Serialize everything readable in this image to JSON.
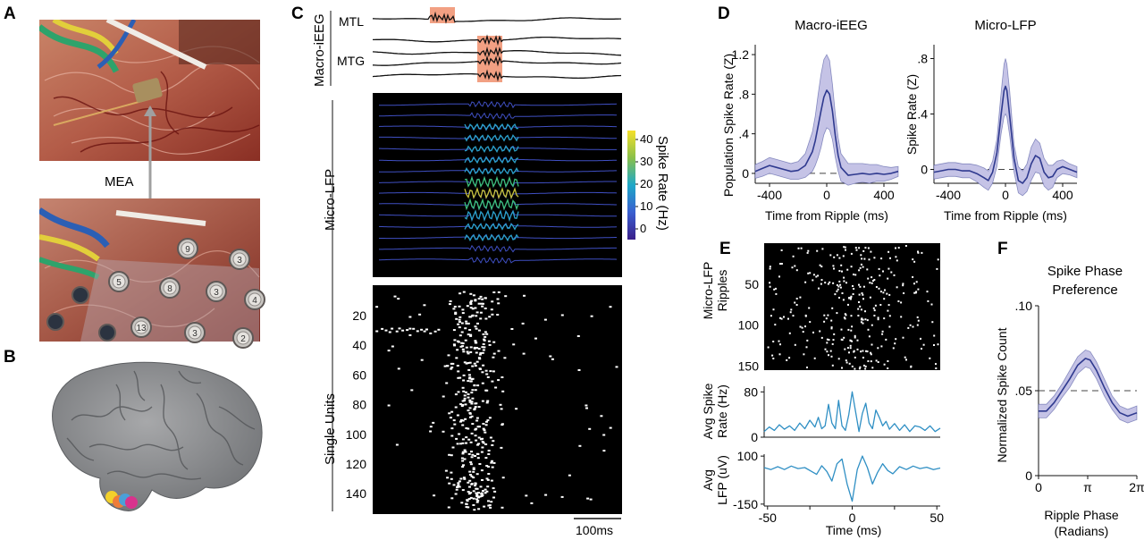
{
  "panels": {
    "a": {
      "letter": "A",
      "label": "MEA",
      "electrode_numbers": [
        "9",
        "3",
        "5",
        "8",
        "3",
        "4",
        "13",
        "3",
        "2"
      ]
    },
    "b": {
      "letter": "B",
      "markers": [
        {
          "name": "yellow-marker",
          "color": "#f2d02b"
        },
        {
          "name": "orange-marker",
          "color": "#ee7d3a"
        },
        {
          "name": "blue-marker",
          "color": "#4ba0d8"
        },
        {
          "name": "magenta-marker",
          "color": "#d8338d"
        }
      ]
    },
    "c": {
      "letter": "C",
      "macro_label": "Macro-iEEG",
      "mtl_label": "MTL",
      "mtg_label": "MTG",
      "micro_label": "Micro-LFP",
      "units_label": "Single Units",
      "colorbar_label": "Spike Rate (Hz)",
      "colorbar_ticks": [
        "40",
        "30",
        "20",
        "10",
        "0"
      ],
      "unit_ticks": [
        "20",
        "40",
        "60",
        "80",
        "100",
        "120",
        "140"
      ],
      "scale_label": "100ms"
    },
    "d": {
      "letter": "D"
    },
    "e": {
      "letter": "E"
    },
    "f": {
      "letter": "F"
    }
  },
  "chart_data": [
    {
      "id": "d-macro",
      "type": "line",
      "title": "Macro-iEEG",
      "xlabel": "Time from Ripple (ms)",
      "ylabel": "Population Spike Rate (Z)",
      "xlim": [
        -500,
        500
      ],
      "ylim": [
        -0.1,
        1.3
      ],
      "xticks": [
        -400,
        0,
        400
      ],
      "xtick_labels": [
        "-400",
        "0",
        "400"
      ],
      "yticks": [
        0,
        0.4,
        0.8,
        1.2
      ],
      "ytick_labels": [
        "0",
        ".4",
        ".8",
        "1.2"
      ],
      "reference_line": 0,
      "x": [
        -500,
        -450,
        -400,
        -350,
        -300,
        -250,
        -200,
        -150,
        -100,
        -80,
        -60,
        -40,
        -20,
        0,
        20,
        40,
        60,
        80,
        100,
        150,
        200,
        250,
        300,
        350,
        400,
        450,
        500
      ],
      "series": [
        {
          "name": "mean",
          "values": [
            0.02,
            0.05,
            0.08,
            0.06,
            0.04,
            0.02,
            0.03,
            0.08,
            0.22,
            0.33,
            0.48,
            0.63,
            0.77,
            0.84,
            0.8,
            0.63,
            0.38,
            0.18,
            0.06,
            -0.02,
            -0.01,
            0.0,
            -0.01,
            0.0,
            -0.01,
            0.0,
            0.02
          ]
        },
        {
          "name": "upper",
          "values": [
            0.09,
            0.12,
            0.16,
            0.14,
            0.12,
            0.1,
            0.12,
            0.2,
            0.42,
            0.58,
            0.8,
            1.0,
            1.15,
            1.2,
            1.14,
            0.9,
            0.6,
            0.36,
            0.2,
            0.1,
            0.1,
            0.1,
            0.09,
            0.09,
            0.07,
            0.06,
            0.07
          ]
        },
        {
          "name": "lower",
          "values": [
            -0.05,
            -0.03,
            0.0,
            -0.02,
            -0.04,
            -0.06,
            -0.06,
            -0.04,
            0.02,
            0.08,
            0.16,
            0.26,
            0.39,
            0.46,
            0.44,
            0.34,
            0.16,
            0.02,
            -0.08,
            -0.12,
            -0.1,
            -0.09,
            -0.1,
            -0.08,
            -0.08,
            -0.06,
            -0.03
          ]
        }
      ]
    },
    {
      "id": "d-micro",
      "type": "line",
      "title": "Micro-LFP",
      "xlabel": "Time from Ripple (ms)",
      "ylabel": "Spike Rate (Z)",
      "xlim": [
        -500,
        500
      ],
      "ylim": [
        -0.1,
        0.9
      ],
      "xticks": [
        -400,
        0,
        400
      ],
      "xtick_labels": [
        "-400",
        "0",
        "400"
      ],
      "yticks": [
        0,
        0.4,
        0.8
      ],
      "ytick_labels": [
        "0",
        ".4",
        ".8"
      ],
      "reference_line": 0,
      "x": [
        -500,
        -450,
        -400,
        -350,
        -300,
        -250,
        -200,
        -150,
        -120,
        -90,
        -60,
        -30,
        -10,
        0,
        10,
        30,
        60,
        90,
        120,
        150,
        180,
        210,
        240,
        270,
        300,
        330,
        360,
        400,
        450,
        500
      ],
      "series": [
        {
          "name": "mean",
          "values": [
            -0.02,
            -0.01,
            0.0,
            0.0,
            -0.01,
            -0.01,
            -0.03,
            -0.06,
            -0.08,
            -0.02,
            0.12,
            0.4,
            0.57,
            0.6,
            0.57,
            0.38,
            0.08,
            -0.08,
            -0.1,
            -0.06,
            0.04,
            0.1,
            0.08,
            -0.02,
            -0.06,
            -0.05,
            0.0,
            0.02,
            0.0,
            -0.02
          ]
        },
        {
          "name": "upper",
          "values": [
            0.03,
            0.04,
            0.05,
            0.05,
            0.04,
            0.04,
            0.03,
            0.01,
            -0.01,
            0.06,
            0.22,
            0.56,
            0.76,
            0.8,
            0.76,
            0.56,
            0.18,
            0.02,
            -0.01,
            0.04,
            0.16,
            0.22,
            0.19,
            0.08,
            0.03,
            0.03,
            0.06,
            0.07,
            0.04,
            0.02
          ]
        },
        {
          "name": "lower",
          "values": [
            -0.07,
            -0.06,
            -0.05,
            -0.05,
            -0.06,
            -0.06,
            -0.09,
            -0.13,
            -0.15,
            -0.1,
            0.02,
            0.26,
            0.38,
            0.4,
            0.38,
            0.24,
            -0.02,
            -0.17,
            -0.19,
            -0.16,
            -0.08,
            -0.02,
            -0.03,
            -0.12,
            -0.15,
            -0.13,
            -0.06,
            -0.03,
            -0.04,
            -0.06
          ]
        }
      ]
    },
    {
      "id": "e-rate",
      "type": "line",
      "ylabel": "Avg Spike Rate (Hz)",
      "xlim": [
        -52,
        52
      ],
      "ylim": [
        0,
        90
      ],
      "yticks": [
        0,
        80
      ],
      "ytick_labels": [
        "0",
        "80"
      ],
      "x": [
        -52,
        -49,
        -46,
        -43,
        -40,
        -37,
        -34,
        -31,
        -28,
        -25,
        -22,
        -20,
        -18,
        -16,
        -14,
        -12,
        -10,
        -8,
        -6,
        -4,
        -2,
        0,
        2,
        4,
        6,
        8,
        10,
        12,
        14,
        16,
        18,
        20,
        22,
        25,
        28,
        31,
        34,
        37,
        40,
        43,
        46,
        49,
        52
      ],
      "series": [
        {
          "name": "avg",
          "values": [
            10,
            18,
            12,
            22,
            14,
            20,
            12,
            25,
            15,
            30,
            18,
            35,
            15,
            20,
            58,
            25,
            15,
            65,
            20,
            12,
            40,
            80,
            45,
            10,
            42,
            60,
            25,
            15,
            48,
            35,
            20,
            28,
            14,
            24,
            12,
            22,
            10,
            20,
            18,
            12,
            20,
            10,
            16
          ]
        }
      ]
    },
    {
      "id": "e-lfp",
      "type": "line",
      "ylabel": "Avg LFP (uV)",
      "xlabel": "Time (ms)",
      "xlim": [
        -52,
        52
      ],
      "ylim": [
        -160,
        110
      ],
      "xticks": [
        -50,
        -25,
        0,
        25,
        50
      ],
      "xtick_labels": [
        "-50",
        "",
        "0",
        "",
        "50"
      ],
      "yticks": [
        -150,
        100
      ],
      "ytick_labels": [
        "-150",
        "100"
      ],
      "x": [
        -52,
        -48,
        -44,
        -40,
        -36,
        -32,
        -28,
        -24,
        -21,
        -18,
        -15,
        -12,
        -9,
        -6,
        -3,
        0,
        3,
        6,
        9,
        12,
        15,
        18,
        21,
        24,
        28,
        32,
        36,
        40,
        44,
        48,
        52
      ],
      "series": [
        {
          "name": "avg",
          "values": [
            40,
            30,
            45,
            30,
            48,
            35,
            40,
            20,
            5,
            50,
            20,
            -30,
            60,
            85,
            -45,
            -135,
            30,
            100,
            40,
            -45,
            15,
            60,
            25,
            8,
            45,
            30,
            48,
            35,
            42,
            30,
            38
          ]
        }
      ]
    },
    {
      "id": "f-phase",
      "type": "line",
      "title": "Spike Phase Preference",
      "title_lines": [
        "Spike Phase",
        "Preference"
      ],
      "xlabel": "Ripple Phase",
      "xlabel2": "(Radians)",
      "ylabel": "Normalized Spike Count",
      "xlim": [
        0,
        6.283
      ],
      "ylim": [
        0,
        0.1
      ],
      "xticks": [
        0,
        3.1416,
        6.283
      ],
      "xtick_labels": [
        "0",
        "π",
        "2π"
      ],
      "yticks": [
        0,
        0.05,
        0.1
      ],
      "ytick_labels": [
        "0",
        ".05",
        ".10"
      ],
      "reference_line": 0.05,
      "x": [
        0,
        0.5,
        1.0,
        1.5,
        2.0,
        2.5,
        3.0,
        3.3,
        3.7,
        4.2,
        4.7,
        5.2,
        5.7,
        6.283
      ],
      "series": [
        {
          "name": "mean",
          "values": [
            0.038,
            0.038,
            0.043,
            0.05,
            0.057,
            0.065,
            0.069,
            0.068,
            0.062,
            0.052,
            0.043,
            0.037,
            0.035,
            0.037
          ]
        },
        {
          "name": "upper",
          "values": [
            0.042,
            0.042,
            0.047,
            0.054,
            0.062,
            0.07,
            0.074,
            0.073,
            0.067,
            0.057,
            0.047,
            0.041,
            0.039,
            0.041
          ]
        },
        {
          "name": "lower",
          "values": [
            0.034,
            0.034,
            0.039,
            0.046,
            0.052,
            0.06,
            0.064,
            0.063,
            0.057,
            0.047,
            0.039,
            0.033,
            0.031,
            0.033
          ]
        }
      ]
    },
    {
      "id": "e-raster",
      "type": "scatter",
      "ylabel": "Micro-LFP Ripples",
      "xlim": [
        -52,
        52
      ],
      "ylim": [
        0,
        155
      ],
      "yticks": [
        50,
        100,
        150
      ],
      "ytick_labels": [
        "50",
        "100",
        "150"
      ]
    }
  ]
}
